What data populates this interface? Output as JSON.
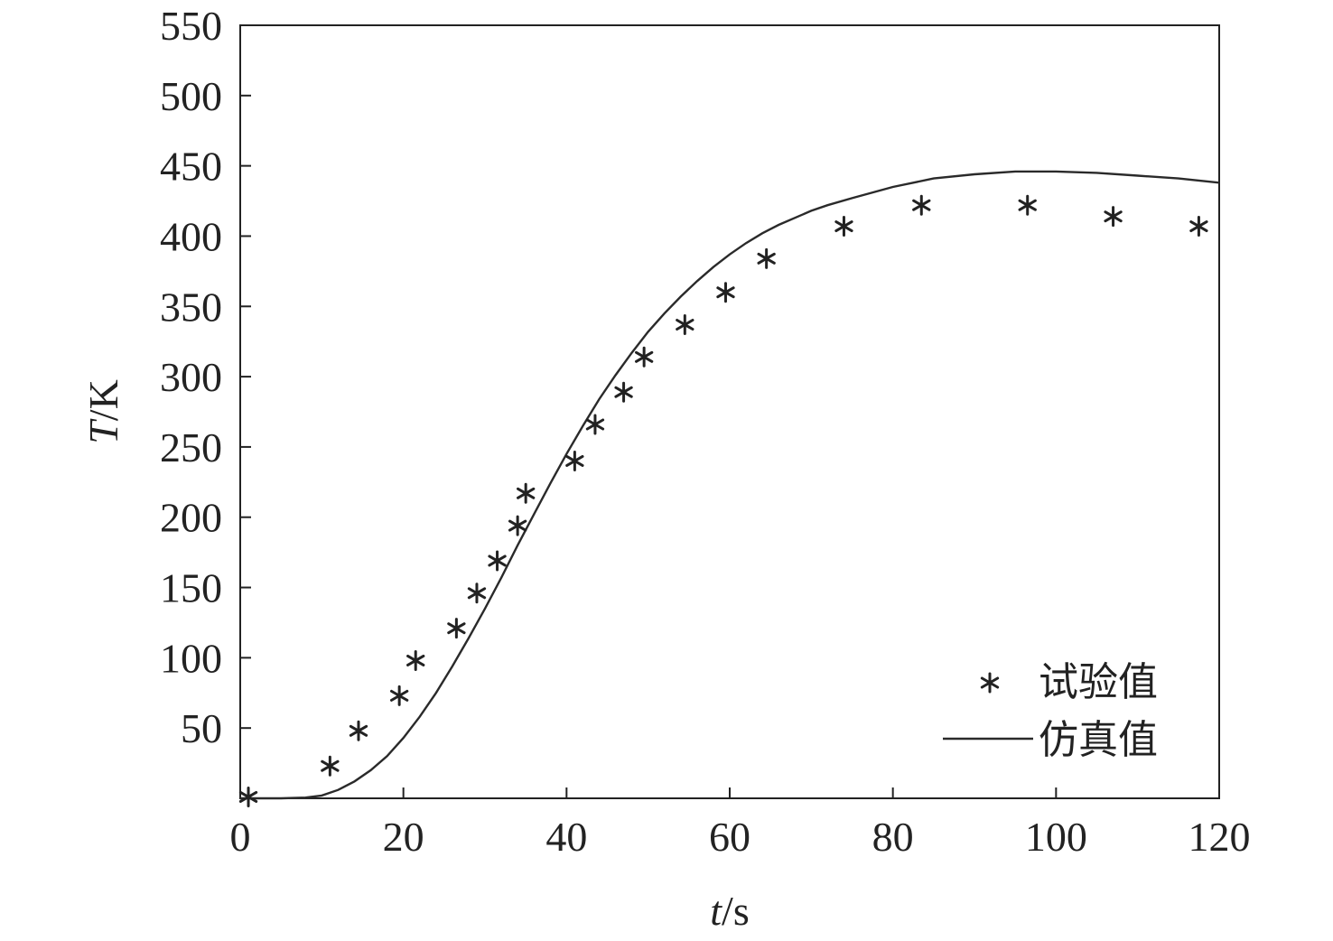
{
  "chart_data": {
    "type": "line",
    "xlabel_italic": "t",
    "xlabel_unit": "/s",
    "ylabel_italic": "T",
    "ylabel_unit": "/K",
    "xlim": [
      0,
      120
    ],
    "ylim": [
      0,
      550
    ],
    "x_ticks": [
      0,
      20,
      40,
      60,
      80,
      100,
      120
    ],
    "y_ticks": [
      50,
      100,
      150,
      200,
      250,
      300,
      350,
      400,
      450,
      500,
      550
    ],
    "grid": false,
    "legend_position": "bottom-right",
    "series": [
      {
        "name": "试验值",
        "style": "marker-asterisk",
        "color": "#222222",
        "points": [
          [
            1,
            1
          ],
          [
            11,
            23
          ],
          [
            14.5,
            48
          ],
          [
            19.5,
            73
          ],
          [
            21.5,
            98
          ],
          [
            26.5,
            121
          ],
          [
            29,
            146
          ],
          [
            31.5,
            169
          ],
          [
            34,
            194
          ],
          [
            35,
            217
          ],
          [
            41,
            240
          ],
          [
            43.5,
            266
          ],
          [
            47,
            289
          ],
          [
            49.5,
            314
          ],
          [
            54.5,
            337
          ],
          [
            59.5,
            360
          ],
          [
            64.5,
            384
          ],
          [
            74,
            407
          ],
          [
            83.5,
            422
          ],
          [
            96.5,
            422
          ],
          [
            107,
            414
          ],
          [
            117.5,
            407
          ]
        ]
      },
      {
        "name": "仿真值",
        "style": "line",
        "color": "#2a2a2a",
        "points": [
          [
            0,
            0
          ],
          [
            5,
            0
          ],
          [
            8,
            0.5
          ],
          [
            10,
            2
          ],
          [
            12,
            6
          ],
          [
            14,
            12
          ],
          [
            16,
            20
          ],
          [
            18,
            30
          ],
          [
            20,
            43
          ],
          [
            22,
            58
          ],
          [
            24,
            75
          ],
          [
            26,
            94
          ],
          [
            28,
            114
          ],
          [
            30,
            135
          ],
          [
            32,
            157
          ],
          [
            34,
            180
          ],
          [
            36,
            202
          ],
          [
            38,
            224
          ],
          [
            40,
            245
          ],
          [
            42,
            265
          ],
          [
            44,
            284
          ],
          [
            46,
            301
          ],
          [
            48,
            317
          ],
          [
            50,
            332
          ],
          [
            52,
            345
          ],
          [
            54,
            357
          ],
          [
            56,
            368
          ],
          [
            58,
            378
          ],
          [
            60,
            387
          ],
          [
            62,
            395
          ],
          [
            64,
            402
          ],
          [
            66,
            408
          ],
          [
            68,
            413
          ],
          [
            70,
            418
          ],
          [
            72,
            422
          ],
          [
            75,
            427
          ],
          [
            80,
            435
          ],
          [
            85,
            441
          ],
          [
            90,
            444
          ],
          [
            95,
            446
          ],
          [
            100,
            446
          ],
          [
            105,
            445
          ],
          [
            110,
            443
          ],
          [
            115,
            441
          ],
          [
            120,
            438
          ]
        ]
      }
    ]
  }
}
